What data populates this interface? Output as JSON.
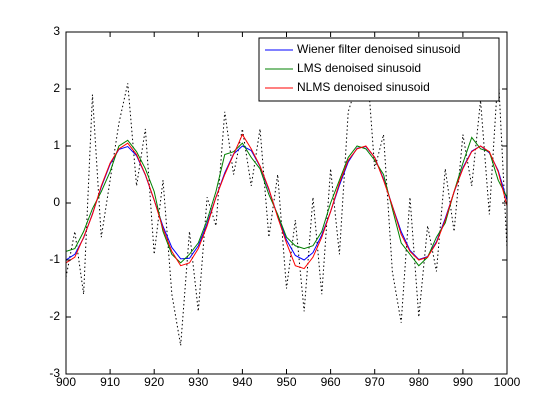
{
  "chart_data": {
    "type": "line",
    "x": [
      900,
      902,
      904,
      906,
      908,
      910,
      912,
      914,
      916,
      918,
      920,
      922,
      924,
      926,
      928,
      930,
      932,
      934,
      936,
      938,
      940,
      942,
      944,
      946,
      948,
      950,
      952,
      954,
      956,
      958,
      960,
      962,
      964,
      966,
      968,
      970,
      972,
      974,
      976,
      978,
      980,
      982,
      984,
      986,
      988,
      990,
      992,
      994,
      996,
      998,
      1000
    ],
    "series": [
      {
        "color": "#000000",
        "linestyle": "dotted",
        "values": [
          -1.3,
          -0.5,
          -1.6,
          1.9,
          -0.6,
          0.4,
          1.4,
          2.1,
          0.3,
          1.3,
          -0.9,
          0.4,
          -1.6,
          -2.5,
          -0.5,
          -1.9,
          0.1,
          -0.4,
          1.6,
          0.5,
          1.3,
          0.3,
          1.3,
          -0.6,
          0.5,
          -1.5,
          -0.3,
          -1.9,
          0.1,
          -1.6,
          0.6,
          -0.9,
          1.6,
          2.1,
          2.7,
          0.6,
          1.2,
          -1.2,
          -2.1,
          0.1,
          -2.0,
          -0.4,
          -1.2,
          0.6,
          -0.5,
          1.2,
          0.3,
          1.8,
          -0.2,
          2.3,
          -0.8
        ]
      },
      {
        "name": "Wiener filter denoised sinusoid",
        "color": "#0000ff",
        "linestyle": "solid",
        "values": [
          -1.0,
          -0.9,
          -0.61,
          -0.19,
          0.28,
          0.68,
          0.94,
          0.99,
          0.83,
          0.49,
          0.05,
          -0.41,
          -0.78,
          -0.98,
          -0.97,
          -0.75,
          -0.36,
          0.1,
          0.53,
          0.86,
          1.0,
          0.92,
          0.64,
          0.23,
          -0.23,
          -0.65,
          -0.92,
          -1.0,
          -0.87,
          -0.56,
          -0.15,
          0.31,
          0.72,
          0.96,
          0.99,
          0.8,
          0.42,
          -0.05,
          -0.5,
          -0.83,
          -0.99,
          -0.94,
          -0.68,
          -0.27,
          0.19,
          0.62,
          0.91,
          1.0,
          0.88,
          0.57,
          0.05
        ]
      },
      {
        "name": "LMS denoised sinusoid",
        "color": "#008000",
        "linestyle": "solid",
        "values": [
          -0.85,
          -0.8,
          -0.5,
          -0.1,
          0.2,
          0.55,
          1.0,
          1.1,
          0.9,
          0.6,
          0.2,
          -0.5,
          -0.9,
          -1.05,
          -0.9,
          -0.7,
          -0.3,
          0.2,
          0.85,
          0.9,
          1.05,
          0.8,
          0.6,
          0.15,
          -0.2,
          -0.6,
          -0.75,
          -0.8,
          -0.75,
          -0.5,
          0.0,
          0.4,
          0.8,
          1.0,
          0.95,
          0.75,
          0.5,
          -0.1,
          -0.7,
          -0.9,
          -1.1,
          -0.95,
          -0.6,
          -0.35,
          0.2,
          0.7,
          1.15,
          0.95,
          0.9,
          0.4,
          0.1
        ]
      },
      {
        "name": "NLMS denoised sinusoid",
        "color": "#ff0000",
        "linestyle": "solid",
        "values": [
          -1.05,
          -0.95,
          -0.6,
          -0.2,
          0.3,
          0.7,
          0.95,
          1.05,
          0.85,
          0.5,
          0.05,
          -0.45,
          -0.85,
          -1.1,
          -1.05,
          -0.8,
          -0.4,
          0.1,
          0.5,
          0.85,
          1.2,
          0.95,
          0.65,
          0.25,
          -0.25,
          -0.7,
          -1.1,
          -1.15,
          -0.95,
          -0.6,
          -0.15,
          0.35,
          0.75,
          0.95,
          1.0,
          0.8,
          0.4,
          -0.05,
          -0.55,
          -0.85,
          -1.0,
          -0.95,
          -0.7,
          -0.3,
          0.2,
          0.6,
          0.9,
          1.0,
          0.9,
          0.55,
          -0.05
        ]
      }
    ],
    "xlim": [
      900,
      1000
    ],
    "xticks": [
      900,
      910,
      920,
      930,
      940,
      950,
      960,
      970,
      980,
      990,
      1000
    ],
    "ylim": [
      -3,
      3
    ],
    "yticks": [
      -3,
      -2,
      -1,
      0,
      1,
      2,
      3
    ],
    "grid": false,
    "legend": "upper right"
  }
}
